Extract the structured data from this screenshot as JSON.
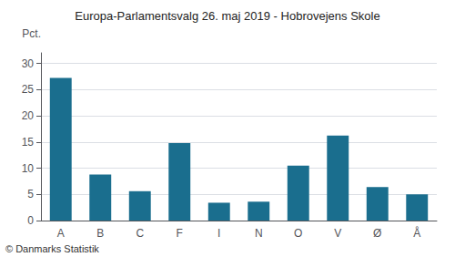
{
  "chart_data": {
    "type": "bar",
    "title": "Europa-Parlamentsvalg 26. maj 2019 - Hobrovejens Skole",
    "categories": [
      "A",
      "B",
      "C",
      "F",
      "I",
      "N",
      "O",
      "V",
      "Ø",
      "Å"
    ],
    "values": [
      27.2,
      8.8,
      5.6,
      14.8,
      3.4,
      3.6,
      10.5,
      16.2,
      6.4,
      5.0
    ],
    "color": "#1a6e8e",
    "ylabel": "Pct.",
    "ylim": [
      0,
      32
    ],
    "yticks": [
      0,
      5,
      10,
      15,
      20,
      25,
      30
    ],
    "grid": true,
    "annotations": [
      "© Danmarks Statistik"
    ]
  }
}
